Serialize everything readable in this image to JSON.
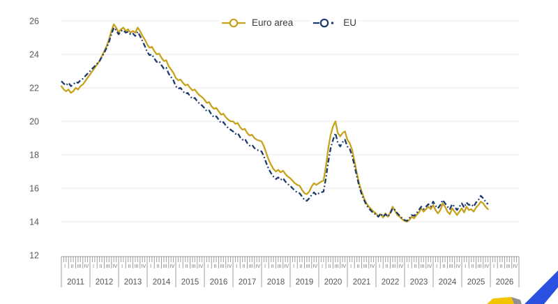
{
  "colors": {
    "background": "#FFFFFF",
    "grid": "#E9E9E9",
    "axis_text": "#595959",
    "ruler_line": "#9E9E9E",
    "ruler_text": "#757575",
    "year_text": "#555555",
    "legend_text": "#3A3A3A"
  },
  "logo": {
    "name": "eurostat-logo-fragment",
    "blue": "#2A50E0",
    "yellow": "#F2C500",
    "gray": "#909090"
  },
  "chart_data": {
    "type": "line",
    "title": "",
    "frequency": "monthly",
    "x_start": "2011-01",
    "x_end": "2025-12",
    "grid": "horizontal-only",
    "legend_position": "top-center",
    "x_axis": {
      "years": [
        2011,
        2012,
        2013,
        2014,
        2015,
        2016,
        2017,
        2018,
        2019,
        2020,
        2021,
        2022,
        2023,
        2024,
        2025,
        2026
      ],
      "quarter_labels": [
        "I",
        "II",
        "III",
        "IV"
      ]
    },
    "y_axis": {
      "min": 12,
      "max": 26,
      "step": 2,
      "ticks": [
        26,
        24,
        22,
        20,
        18,
        16,
        14,
        12
      ]
    },
    "series": [
      {
        "name": "Euro area",
        "color": "#C8A21C",
        "line_style": "solid",
        "marker": "hollow-circle",
        "values": [
          22.1,
          21.9,
          21.8,
          21.9,
          21.7,
          21.8,
          22.0,
          21.9,
          22.1,
          22.2,
          22.4,
          22.6,
          22.8,
          23.0,
          23.2,
          23.4,
          23.6,
          23.9,
          24.2,
          24.5,
          24.9,
          25.4,
          25.8,
          25.6,
          25.3,
          25.5,
          25.6,
          25.4,
          25.5,
          25.3,
          25.4,
          25.3,
          25.6,
          25.4,
          25.1,
          24.9,
          24.6,
          24.4,
          24.45,
          24.2,
          24.0,
          24.05,
          23.8,
          23.6,
          23.65,
          23.3,
          23.1,
          22.9,
          22.6,
          22.45,
          22.5,
          22.3,
          22.15,
          22.2,
          22.0,
          21.85,
          21.9,
          21.7,
          21.55,
          21.45,
          21.3,
          21.1,
          21.15,
          20.9,
          20.75,
          20.8,
          20.6,
          20.4,
          20.45,
          20.25,
          20.1,
          20.0,
          20.0,
          19.85,
          19.9,
          19.65,
          19.5,
          19.55,
          19.3,
          19.15,
          19.2,
          19.0,
          18.9,
          18.85,
          18.8,
          18.5,
          18.1,
          17.7,
          17.4,
          17.15,
          17.0,
          17.1,
          16.95,
          17.05,
          16.85,
          16.7,
          16.6,
          16.45,
          16.3,
          16.2,
          16.15,
          15.9,
          15.7,
          15.65,
          15.8,
          16.1,
          16.3,
          16.2,
          16.3,
          16.4,
          16.45,
          17.3,
          18.4,
          19.2,
          19.7,
          20.0,
          19.3,
          19.1,
          19.3,
          19.4,
          18.9,
          18.7,
          18.3,
          17.6,
          16.9,
          16.25,
          15.8,
          15.4,
          15.1,
          14.9,
          14.75,
          14.6,
          14.5,
          14.3,
          14.45,
          14.25,
          14.5,
          14.3,
          14.55,
          14.9,
          14.65,
          14.4,
          14.3,
          14.15,
          14.05,
          14.0,
          14.1,
          14.3,
          14.2,
          14.4,
          14.55,
          14.8,
          14.6,
          14.75,
          14.9,
          14.75,
          15.0,
          14.7,
          14.5,
          14.7,
          15.1,
          14.9,
          14.6,
          14.45,
          14.8,
          14.6,
          14.4,
          14.6,
          14.8,
          14.55,
          14.9,
          14.7,
          14.75,
          14.6,
          14.85,
          15.0,
          15.2,
          15.1,
          14.9,
          14.75
        ]
      },
      {
        "name": "EU",
        "color": "#1C3A6E",
        "line_style": "dash-dot",
        "marker": "hollow-circle",
        "values": [
          22.4,
          22.25,
          22.15,
          22.3,
          22.1,
          22.2,
          22.35,
          22.3,
          22.45,
          22.55,
          22.7,
          22.85,
          23.0,
          23.15,
          23.3,
          23.45,
          23.6,
          23.85,
          24.1,
          24.4,
          24.75,
          25.2,
          25.6,
          25.45,
          25.2,
          25.4,
          25.45,
          25.3,
          25.35,
          25.2,
          25.25,
          25.1,
          25.35,
          25.1,
          24.8,
          24.5,
          24.15,
          23.95,
          24.0,
          23.75,
          23.55,
          23.6,
          23.35,
          23.15,
          23.2,
          22.85,
          22.65,
          22.45,
          22.1,
          21.95,
          22.0,
          21.8,
          21.65,
          21.7,
          21.5,
          21.35,
          21.4,
          21.2,
          21.05,
          20.95,
          20.8,
          20.6,
          20.65,
          20.4,
          20.25,
          20.3,
          20.1,
          19.9,
          19.95,
          19.75,
          19.6,
          19.5,
          19.4,
          19.25,
          19.3,
          19.05,
          18.9,
          18.95,
          18.7,
          18.55,
          18.6,
          18.4,
          18.3,
          18.25,
          18.2,
          17.9,
          17.5,
          17.15,
          16.9,
          16.7,
          16.55,
          16.65,
          16.5,
          16.6,
          16.4,
          16.25,
          16.15,
          16.0,
          15.85,
          15.75,
          15.7,
          15.5,
          15.3,
          15.25,
          15.4,
          15.6,
          15.75,
          15.6,
          15.7,
          15.75,
          15.8,
          16.6,
          17.6,
          18.4,
          18.9,
          19.3,
          18.7,
          18.5,
          18.75,
          18.9,
          18.5,
          18.35,
          17.95,
          17.35,
          16.7,
          16.1,
          15.65,
          15.3,
          15.0,
          14.8,
          14.65,
          14.5,
          14.45,
          14.3,
          14.5,
          14.3,
          14.45,
          14.3,
          14.5,
          14.8,
          14.7,
          14.5,
          14.35,
          14.2,
          14.1,
          14.05,
          14.2,
          14.4,
          14.35,
          14.5,
          14.7,
          14.9,
          14.75,
          14.9,
          15.05,
          14.9,
          15.2,
          14.95,
          14.8,
          15.0,
          15.3,
          15.1,
          14.9,
          14.75,
          15.05,
          14.9,
          14.7,
          14.9,
          15.1,
          14.85,
          15.15,
          15.0,
          15.05,
          14.9,
          15.15,
          15.3,
          15.55,
          15.4,
          15.2,
          15.05
        ]
      }
    ]
  }
}
